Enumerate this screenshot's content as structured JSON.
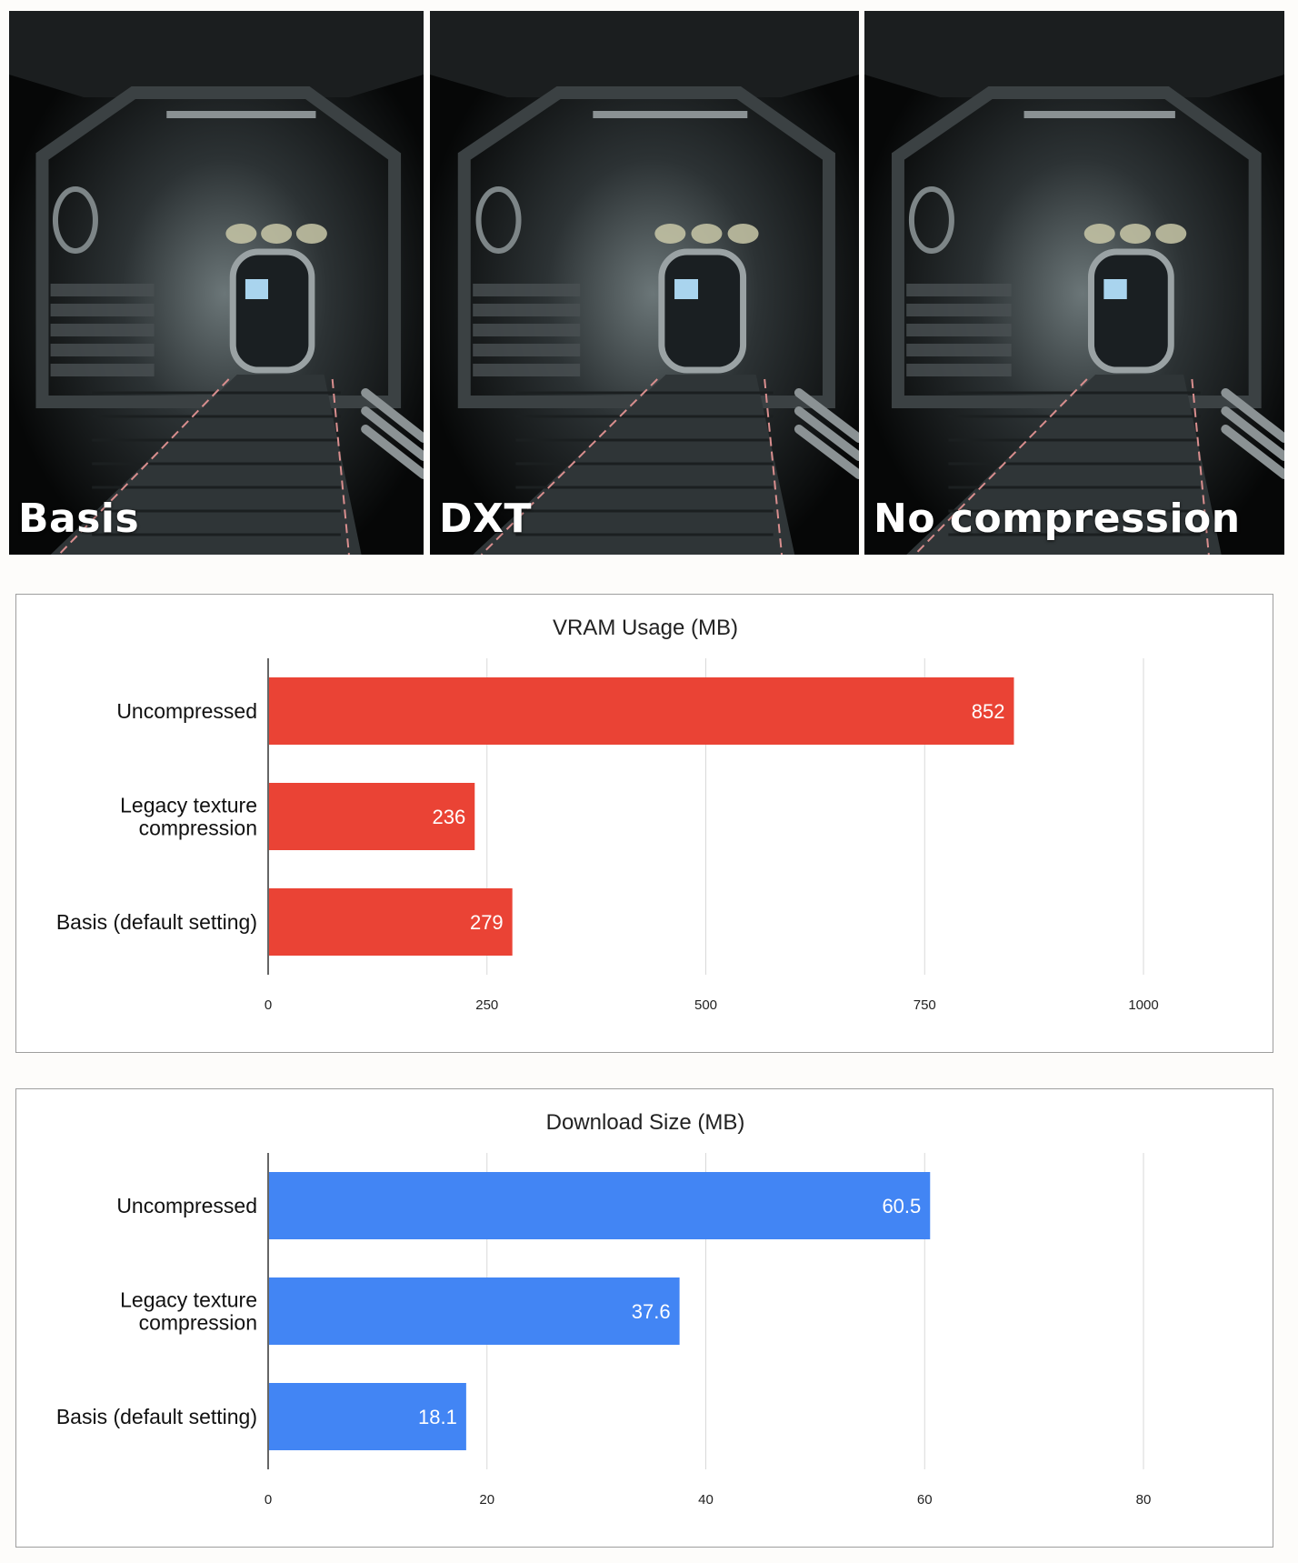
{
  "panels": [
    {
      "label": "Basis"
    },
    {
      "label": "DXT"
    },
    {
      "label": "No compression"
    }
  ],
  "colors": {
    "vram_bar": "#ea4335",
    "download_bar": "#4285f4",
    "bar_label": "#ffffff",
    "grid": "#d9d9d9",
    "axis": "#333333"
  },
  "chart_data": [
    {
      "type": "bar",
      "orientation": "horizontal",
      "title": "VRAM Usage (MB)",
      "categories": [
        "Uncompressed",
        "Legacy texture compression",
        "Basis (default setting)"
      ],
      "category_lines": [
        [
          "Uncompressed"
        ],
        [
          "Legacy texture",
          "compression"
        ],
        [
          "Basis (default setting)"
        ]
      ],
      "values": [
        852,
        236,
        279
      ],
      "value_labels": [
        "852",
        "236",
        "279"
      ],
      "xlim": [
        0,
        1000
      ],
      "ticks": [
        0,
        250,
        500,
        750,
        1000
      ],
      "grid": true,
      "color": "#ea4335"
    },
    {
      "type": "bar",
      "orientation": "horizontal",
      "title": "Download Size (MB)",
      "categories": [
        "Uncompressed",
        "Legacy texture compression",
        "Basis (default setting)"
      ],
      "category_lines": [
        [
          "Uncompressed"
        ],
        [
          "Legacy texture",
          "compression"
        ],
        [
          "Basis (default setting)"
        ]
      ],
      "values": [
        60.5,
        37.6,
        18.1
      ],
      "value_labels": [
        "60.5",
        "37.6",
        "18.1"
      ],
      "xlim": [
        0,
        80
      ],
      "ticks": [
        0,
        20,
        40,
        60,
        80
      ],
      "grid": true,
      "color": "#4285f4"
    }
  ]
}
